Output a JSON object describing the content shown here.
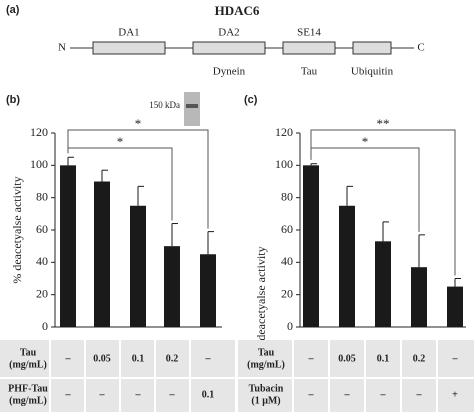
{
  "panel_a": {
    "label": "(a)",
    "title": "HDAC6",
    "n_term": "N",
    "c_term": "C",
    "domains_above": [
      "DA1",
      "DA2",
      "SE14"
    ],
    "binding_below": [
      "Dynein",
      "Tau",
      "Ubiquitin"
    ]
  },
  "chart_data": [
    {
      "type": "bar",
      "panel": "(b)",
      "ylabel": "% deacetyalse activity",
      "values": [
        100,
        90,
        75,
        50,
        45
      ],
      "errors": [
        5,
        7,
        12,
        14,
        14
      ],
      "color": "#1a1a1a",
      "ylim": [
        0,
        120
      ],
      "yticks": [
        0,
        20,
        40,
        60,
        80,
        100,
        120
      ],
      "annotations": [
        "*",
        "*"
      ],
      "inset_label": "150 kDa",
      "table": [
        {
          "label": [
            "Tau",
            "(mg/mL)"
          ],
          "cells": [
            "–",
            "0.05",
            "0.1",
            "0.2",
            "–"
          ]
        },
        {
          "label": [
            "PHF-Tau",
            "(mg/mL)"
          ],
          "cells": [
            "–",
            "–",
            "–",
            "–",
            "0.1"
          ]
        }
      ]
    },
    {
      "type": "bar",
      "panel": "(c)",
      "ylabel": "% deacetyalse activity",
      "values": [
        100,
        75,
        53,
        37,
        25
      ],
      "errors": [
        1,
        12,
        12,
        20,
        5
      ],
      "color": "#1a1a1a",
      "ylim": [
        0,
        120
      ],
      "yticks": [
        0,
        20,
        40,
        60,
        80,
        100,
        120
      ],
      "annotations": [
        "*",
        "**"
      ],
      "table": [
        {
          "label": [
            "Tau",
            "(mg/mL)"
          ],
          "cells": [
            "–",
            "0.05",
            "0.1",
            "0.2",
            "–"
          ]
        },
        {
          "label": [
            "Tubacin",
            "(1 μM)"
          ],
          "cells": [
            "–",
            "–",
            "–",
            "–",
            "+"
          ]
        }
      ]
    }
  ]
}
